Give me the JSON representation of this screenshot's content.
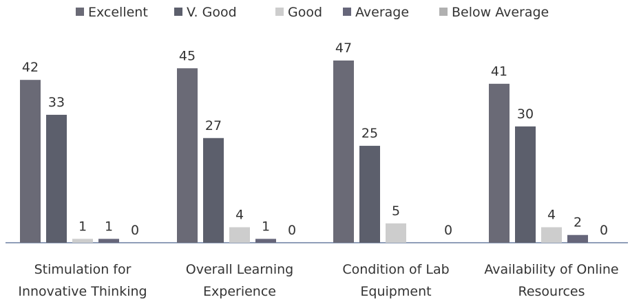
{
  "chart_data": {
    "type": "bar",
    "categories": [
      "Stimulation for Innovative Thinking",
      "Overall Learning Experience",
      "Condition of Lab Equipment",
      "Availability of Online Resources"
    ],
    "series": [
      {
        "name": "Excellent",
        "color": "#6a6a76",
        "values": [
          42,
          45,
          47,
          41
        ]
      },
      {
        "name": "V. Good",
        "color": "#5c5f6c",
        "values": [
          33,
          27,
          25,
          30
        ]
      },
      {
        "name": "Good",
        "color": "#cdcdcd",
        "values": [
          1,
          4,
          5,
          4
        ]
      },
      {
        "name": "Average",
        "color": "#66667a",
        "values": [
          1,
          1,
          null,
          2
        ]
      },
      {
        "name": "Below Average",
        "color": "#b0b0b0",
        "values": [
          0,
          0,
          0,
          0
        ]
      }
    ],
    "legend": "top"
  }
}
